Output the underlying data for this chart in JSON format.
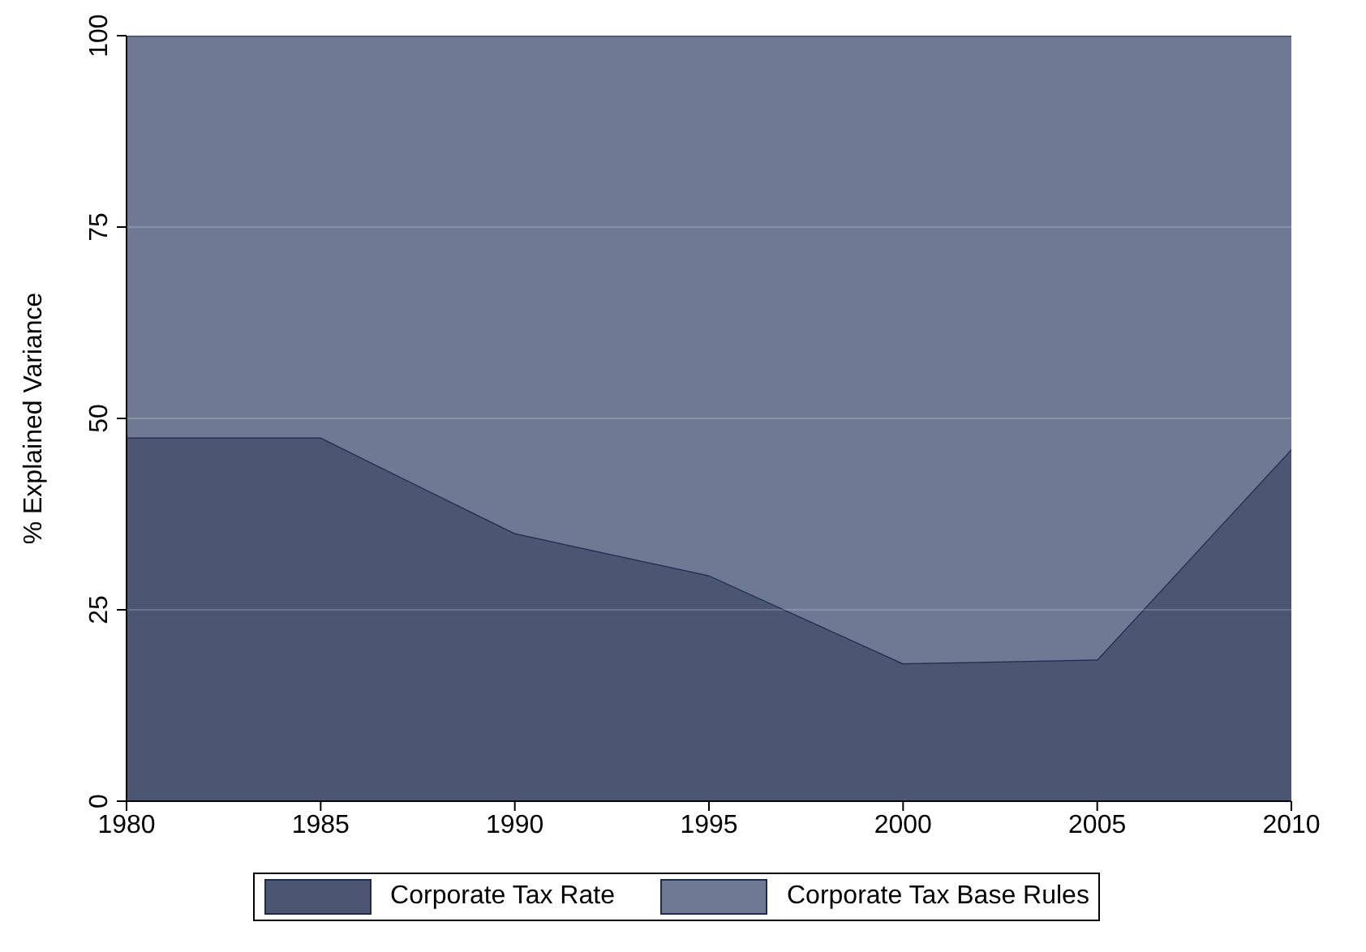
{
  "chart_data": {
    "type": "area",
    "stacked": true,
    "ylabel": "% Explained Variance",
    "x": [
      1980,
      1985,
      1990,
      1995,
      2000,
      2005,
      2010
    ],
    "xlim": [
      1980,
      2010
    ],
    "xticks": [
      1980,
      1985,
      1990,
      1995,
      2000,
      2005,
      2010
    ],
    "ylim": [
      0,
      100
    ],
    "yticks": [
      0,
      25,
      50,
      75,
      100
    ],
    "grid": "y",
    "legend": "bottom",
    "series": [
      {
        "name": "Corporate Tax Rate",
        "color": "#4a5672",
        "values": [
          47.5,
          47.5,
          35,
          29.5,
          18,
          18.5,
          46
        ]
      },
      {
        "name": "Corporate Tax Base Rules",
        "color": "#6e7a94",
        "values": [
          52.5,
          52.5,
          65,
          70.5,
          82,
          81.5,
          54
        ]
      }
    ]
  }
}
